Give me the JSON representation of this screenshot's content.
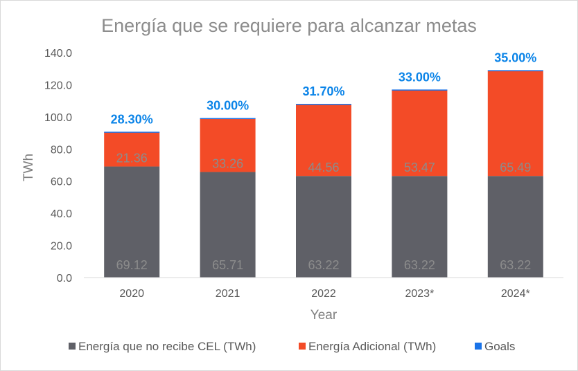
{
  "chart_data": {
    "type": "bar",
    "stacked": true,
    "title": "Energía que se requiere para alcanzar metas",
    "xlabel": "Year",
    "ylabel": "TWh",
    "ylim": [
      0,
      140
    ],
    "yticks": [
      "0.0",
      "20.0",
      "40.0",
      "60.0",
      "80.0",
      "100.0",
      "120.0",
      "140.0"
    ],
    "categories": [
      "2020",
      "2021",
      "2022",
      "2023*",
      "2024*"
    ],
    "series": [
      {
        "name": "Energía que no recibe CEL (TWh)",
        "color": "#5f6067",
        "values": [
          69.12,
          65.71,
          63.22,
          63.22,
          63.22
        ],
        "labels": [
          "69.12",
          "65.71",
          "63.22",
          "63.22",
          "63.22"
        ]
      },
      {
        "name": "Energía Adicional (TWh)",
        "color": "#f34b27",
        "values": [
          21.36,
          33.26,
          44.56,
          53.47,
          65.49
        ],
        "labels": [
          "21.36",
          "33.26",
          "44.56",
          "53.47",
          "65.49"
        ]
      },
      {
        "name": "Goals",
        "color": "#1a73e8",
        "values": [
          0.283,
          0.3,
          0.317,
          0.33,
          0.35
        ],
        "labels": [
          "28.30%",
          "30.00%",
          "31.70%",
          "33.00%",
          "35.00%"
        ]
      }
    ],
    "grid": false,
    "legend": "bottom"
  }
}
